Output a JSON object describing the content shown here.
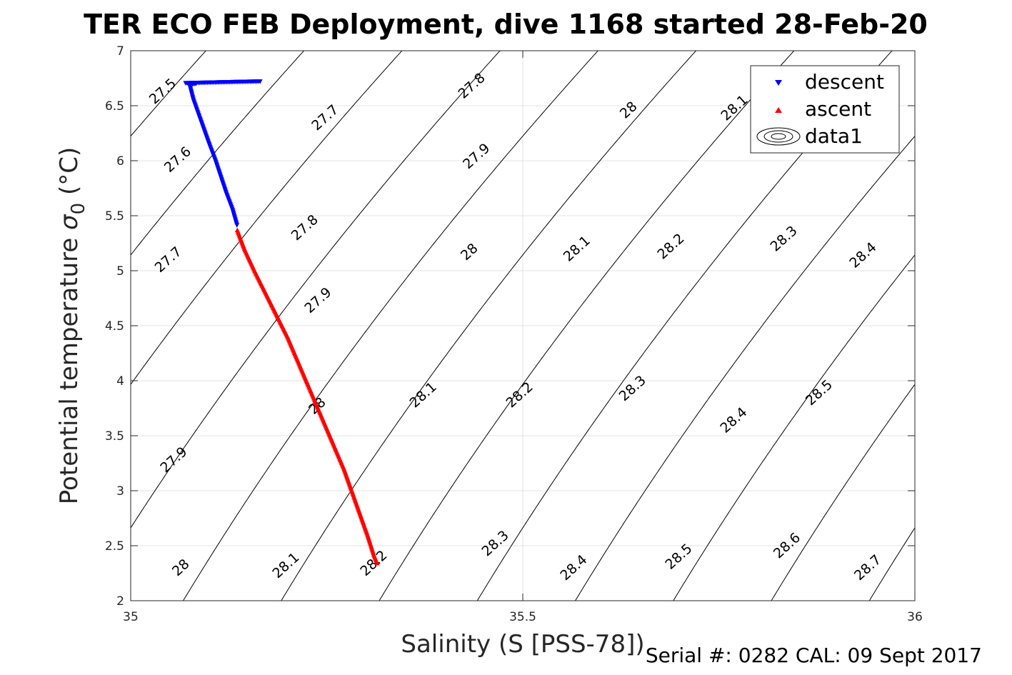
{
  "chart_data": {
    "type": "scatter",
    "title": "TER ECO FEB Deployment, dive 1168 started 28-Feb-20",
    "xlabel": "Salinity (S [PSS-78])",
    "ylabel_prefix": "Potential temperature ",
    "ylabel_sigma": "σ",
    "ylabel_sub": "0",
    "ylabel_suffix": " (°C)",
    "xlim": [
      35,
      36
    ],
    "ylim": [
      2,
      7
    ],
    "x_ticks": [
      35,
      35.5,
      36
    ],
    "x_tick_labels": [
      "35",
      "35.5",
      "36"
    ],
    "y_ticks": [
      2,
      2.5,
      3,
      3.5,
      4,
      4.5,
      5,
      5.5,
      6,
      6.5,
      7
    ],
    "y_tick_labels": [
      "2",
      "2.5",
      "3",
      "3.5",
      "4",
      "4.5",
      "5",
      "5.5",
      "6",
      "6.5",
      "7"
    ],
    "grid": true,
    "legend_position": "top-right",
    "legend": [
      "descent",
      "ascent",
      "data1"
    ],
    "series": [
      {
        "name": "descent",
        "color": "#0000ff",
        "marker": "triangle-down",
        "points": [
          [
            35.165,
            6.72
          ],
          [
            35.13,
            6.715
          ],
          [
            35.1,
            6.71
          ],
          [
            35.07,
            6.705
          ],
          [
            35.083,
            6.7
          ],
          [
            35.075,
            6.69
          ],
          [
            35.08,
            6.55
          ],
          [
            35.09,
            6.35
          ],
          [
            35.1,
            6.15
          ],
          [
            35.108,
            6.0
          ],
          [
            35.115,
            5.85
          ],
          [
            35.122,
            5.7
          ],
          [
            35.13,
            5.55
          ],
          [
            35.136,
            5.4
          ]
        ]
      },
      {
        "name": "ascent",
        "color": "#ff0000",
        "marker": "triangle-up",
        "points": [
          [
            35.136,
            5.37
          ],
          [
            35.145,
            5.2
          ],
          [
            35.158,
            5.0
          ],
          [
            35.172,
            4.8
          ],
          [
            35.186,
            4.6
          ],
          [
            35.2,
            4.4
          ],
          [
            35.212,
            4.2
          ],
          [
            35.224,
            4.0
          ],
          [
            35.236,
            3.8
          ],
          [
            35.248,
            3.6
          ],
          [
            35.26,
            3.4
          ],
          [
            35.272,
            3.2
          ],
          [
            35.282,
            3.0
          ],
          [
            35.292,
            2.8
          ],
          [
            35.302,
            2.6
          ],
          [
            35.31,
            2.42
          ],
          [
            35.315,
            2.33
          ]
        ]
      }
    ],
    "contour_levels": [
      27.5,
      27.6,
      27.7,
      27.8,
      27.9,
      28.0,
      28.1,
      28.2,
      28.3,
      28.4,
      28.5,
      28.6,
      28.7
    ],
    "contour_labels": [
      {
        "text": "27.5",
        "x": 35.041,
        "y": 6.63
      },
      {
        "text": "27.6",
        "x": 35.06,
        "y": 6.01
      },
      {
        "text": "27.7",
        "x": 35.048,
        "y": 5.1
      },
      {
        "text": "27.9",
        "x": 35.055,
        "y": 3.28
      },
      {
        "text": "28",
        "x": 35.064,
        "y": 2.3
      },
      {
        "text": "27.8",
        "x": 35.435,
        "y": 6.68
      },
      {
        "text": "27.7",
        "x": 35.248,
        "y": 6.39
      },
      {
        "text": "27.8",
        "x": 35.222,
        "y": 5.39
      },
      {
        "text": "27.9",
        "x": 35.239,
        "y": 4.73
      },
      {
        "text": "28",
        "x": 35.238,
        "y": 3.77
      },
      {
        "text": "28.1",
        "x": 35.198,
        "y": 2.32
      },
      {
        "text": "28",
        "x": 35.635,
        "y": 6.46
      },
      {
        "text": "27.9",
        "x": 35.441,
        "y": 6.04
      },
      {
        "text": "28",
        "x": 35.432,
        "y": 5.17
      },
      {
        "text": "28.1",
        "x": 35.373,
        "y": 3.87
      },
      {
        "text": "28.2",
        "x": 35.31,
        "y": 2.34
      },
      {
        "text": "28.1",
        "x": 35.77,
        "y": 6.48
      },
      {
        "text": "28.1",
        "x": 35.569,
        "y": 5.2
      },
      {
        "text": "28.2",
        "x": 35.496,
        "y": 3.87
      },
      {
        "text": "28.3",
        "x": 35.465,
        "y": 2.52
      },
      {
        "text": "28.2",
        "x": 35.689,
        "y": 5.22
      },
      {
        "text": "28.3",
        "x": 35.64,
        "y": 3.93
      },
      {
        "text": "28.4",
        "x": 35.565,
        "y": 2.3
      },
      {
        "text": "28.3",
        "x": 35.833,
        "y": 5.29
      },
      {
        "text": "28.4",
        "x": 35.769,
        "y": 3.64
      },
      {
        "text": "28.5",
        "x": 35.699,
        "y": 2.4
      },
      {
        "text": "28.4",
        "x": 35.934,
        "y": 5.14
      },
      {
        "text": "28.5",
        "x": 35.878,
        "y": 3.89
      },
      {
        "text": "28.6",
        "x": 35.837,
        "y": 2.5
      },
      {
        "text": "28.7",
        "x": 35.94,
        "y": 2.3
      }
    ]
  },
  "footer": "Serial #: 0282  CAL: 09 Sept 2017"
}
